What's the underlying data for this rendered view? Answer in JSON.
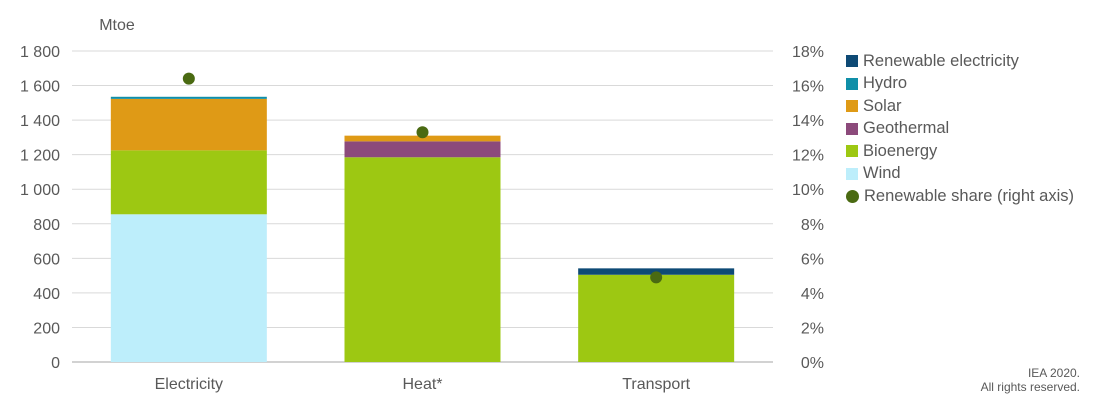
{
  "chart_data": {
    "type": "bar",
    "stacked": true,
    "unit_label": "Mtoe",
    "categories": [
      "Electricity",
      "Heat*",
      "Transport"
    ],
    "series": [
      {
        "name": "Wind",
        "color": "#bdeefb",
        "values": [
          855,
          0,
          0
        ]
      },
      {
        "name": "Bioenergy",
        "color": "#9dc812",
        "values": [
          370,
          1185,
          505
        ]
      },
      {
        "name": "Geothermal",
        "color": "#8c4a7b",
        "values": [
          0,
          92,
          0
        ]
      },
      {
        "name": "Solar",
        "color": "#df9a16",
        "values": [
          298,
          33,
          0
        ]
      },
      {
        "name": "Hydro",
        "color": "#108fa8",
        "values": [
          12,
          0,
          0
        ]
      },
      {
        "name": "Renewable electricity",
        "color": "#0e4a75",
        "values": [
          0,
          0,
          37
        ]
      }
    ],
    "line_series": {
      "name": "Renewable share (right axis)",
      "color": "#4a6a12",
      "values": [
        16.4,
        13.3,
        4.9
      ],
      "axis": "right"
    },
    "left_axis": {
      "min": 0,
      "max": 1800,
      "step": 200,
      "tick_labels": [
        "0",
        "200",
        "400",
        "600",
        "800",
        "1 000",
        "1 200",
        "1 400",
        "1 600",
        "1 800"
      ]
    },
    "right_axis": {
      "min": 0,
      "max": 18,
      "step": 2,
      "tick_labels": [
        "0%",
        "2%",
        "4%",
        "6%",
        "8%",
        "10%",
        "12%",
        "14%",
        "16%",
        "18%"
      ]
    },
    "grid": true,
    "legend_position": "right",
    "legend_order": [
      "Renewable electricity",
      "Hydro",
      "Solar",
      "Geothermal",
      "Bioenergy",
      "Wind",
      "Renewable share (right axis)"
    ]
  },
  "credit": {
    "line1": "IEA 2020.",
    "line2": "All rights reserved."
  }
}
